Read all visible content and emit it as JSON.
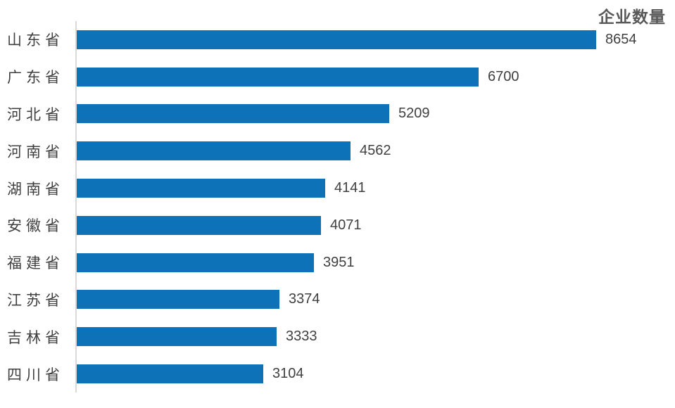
{
  "chart_data": {
    "type": "bar",
    "orientation": "horizontal",
    "title": "企业数量",
    "categories": [
      "山东省",
      "广东省",
      "河北省",
      "河南省",
      "湖南省",
      "安徽省",
      "福建省",
      "江苏省",
      "吉林省",
      "四川省"
    ],
    "values": [
      8654,
      6700,
      5209,
      4562,
      4141,
      4071,
      3951,
      3374,
      3333,
      3104
    ],
    "xlim": [
      0,
      8654
    ],
    "data_labels": true,
    "grid": false,
    "legend": "none",
    "colors": {
      "bar": "#0e72b9",
      "category_label": "#3f3f3f",
      "value_label": "#404040",
      "title": "#595959",
      "axis_line": "#d9d9d9",
      "background": "#ffffff"
    }
  }
}
